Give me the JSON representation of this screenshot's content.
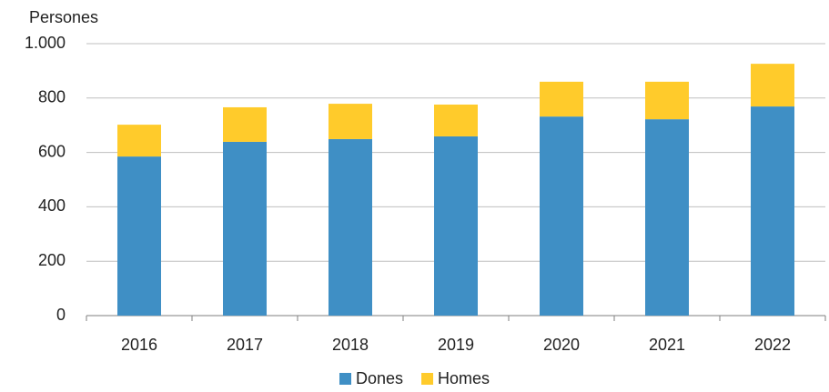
{
  "chart_data": {
    "type": "stacked_bar",
    "y_label": "Persones",
    "categories": [
      "2016",
      "2017",
      "2018",
      "2019",
      "2020",
      "2021",
      "2022"
    ],
    "series": [
      {
        "name": "Dones",
        "color": "#3f8fc5",
        "values": [
          585,
          639,
          649,
          659,
          732,
          722,
          769
        ]
      },
      {
        "name": "Homes",
        "color": "#ffcb2b",
        "values": [
          117,
          127,
          130,
          117,
          128,
          138,
          157
        ]
      }
    ],
    "ylim": [
      0,
      1000
    ],
    "yticks": [
      0,
      200,
      400,
      600,
      800,
      {
        "value": 1000,
        "label": "1.000"
      }
    ],
    "grid": true,
    "legend": "bottom"
  }
}
